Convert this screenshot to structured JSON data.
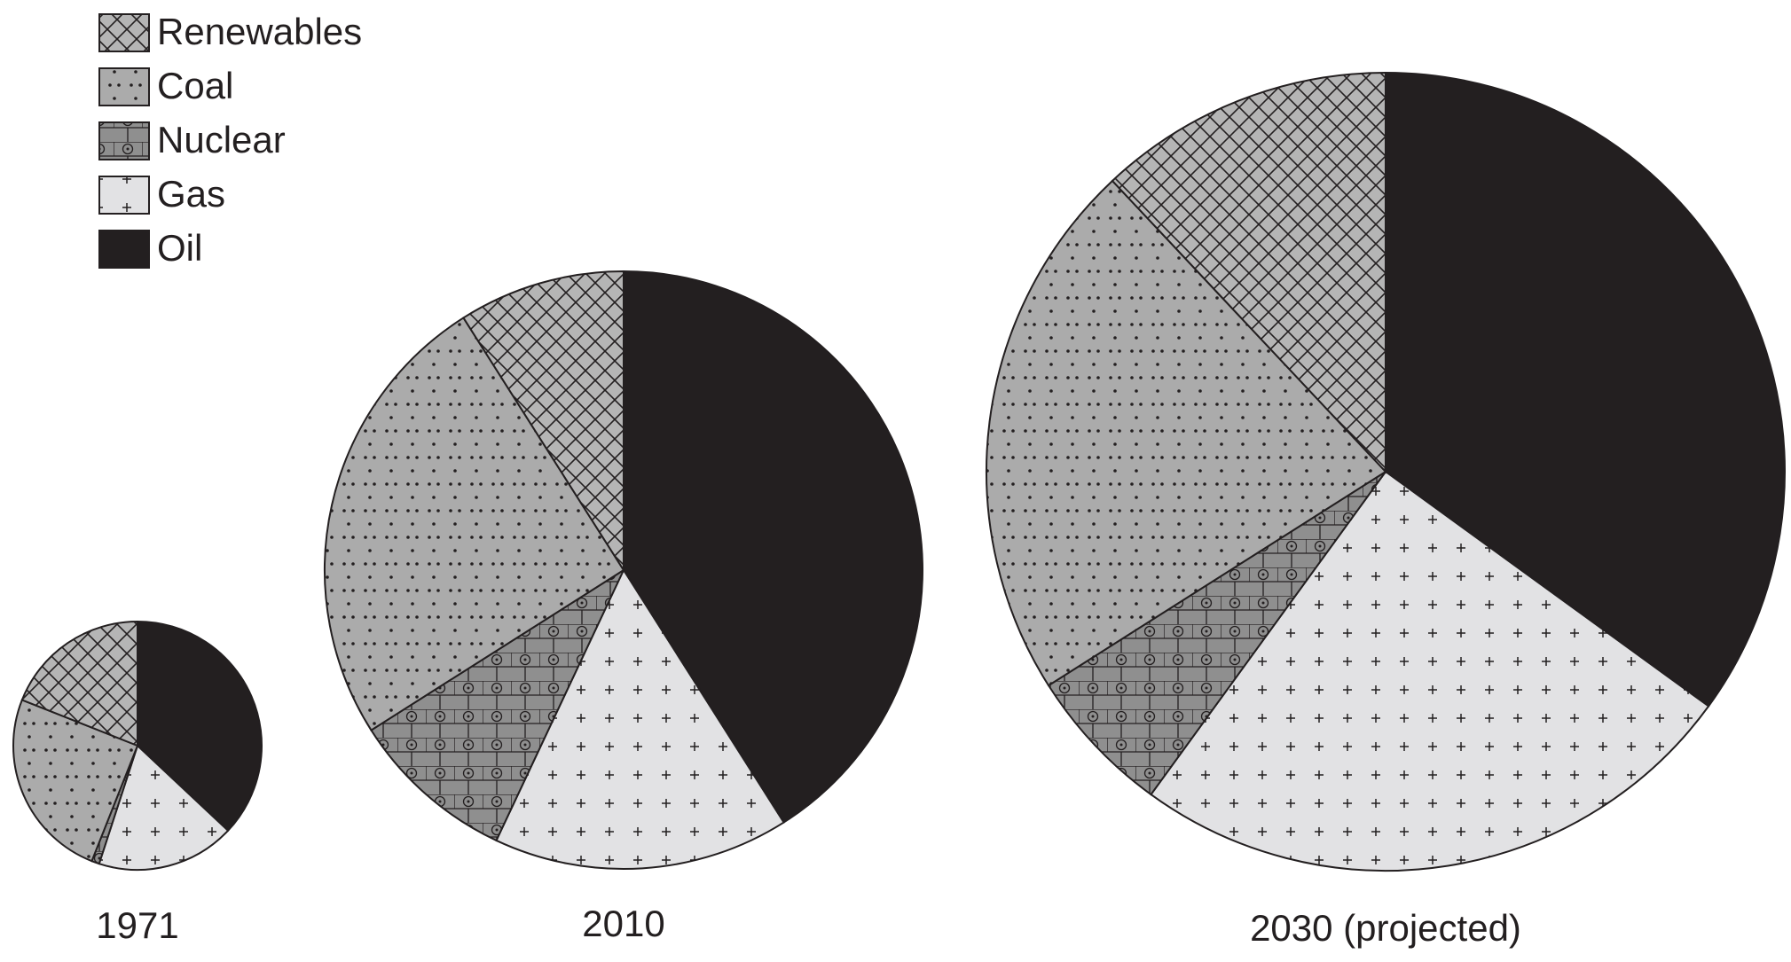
{
  "chart_data": [
    {
      "type": "pie",
      "title": "1971",
      "categories": [
        "Oil",
        "Gas",
        "Nuclear",
        "Coal",
        "Renewables"
      ],
      "values": [
        37,
        18,
        1,
        25,
        19
      ],
      "colors": [
        "#231f20",
        "#e2e2e4",
        "#8f8f8f",
        "#ababab",
        "#b5b5b5"
      ],
      "patterns": [
        "solid",
        "plus",
        "brick-circle",
        "dots",
        "crosshatch"
      ]
    },
    {
      "type": "pie",
      "title": "2010",
      "categories": [
        "Oil",
        "Gas",
        "Nuclear",
        "Coal",
        "Renewables"
      ],
      "values": [
        41,
        16,
        9,
        25,
        9
      ],
      "colors": [
        "#231f20",
        "#e2e2e4",
        "#8f8f8f",
        "#ababab",
        "#b5b5b5"
      ],
      "patterns": [
        "solid",
        "plus",
        "brick-circle",
        "dots",
        "crosshatch"
      ]
    },
    {
      "type": "pie",
      "title": "2030 (projected)",
      "categories": [
        "Oil",
        "Gas",
        "Nuclear",
        "Coal",
        "Renewables"
      ],
      "values": [
        35,
        25,
        6,
        22,
        12
      ],
      "colors": [
        "#231f20",
        "#e2e2e4",
        "#8f8f8f",
        "#ababab",
        "#b5b5b5"
      ],
      "patterns": [
        "solid",
        "plus",
        "brick-circle",
        "dots",
        "crosshatch"
      ]
    }
  ]
}
